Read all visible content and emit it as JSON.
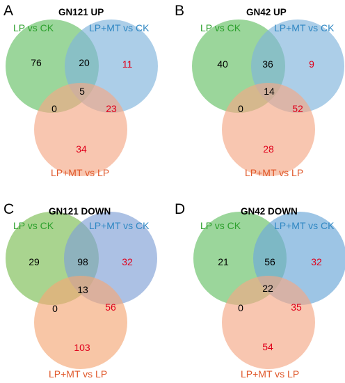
{
  "colors": {
    "set_a": "#2ca02c",
    "set_b": "#2f87c3",
    "set_c": "#e0582a",
    "count_black": "#000000",
    "count_red": "#e0001b"
  },
  "panels": [
    {
      "letter": "A",
      "title": "GN121 UP",
      "set_a_label": "LP vs CK",
      "set_b_label": "LP+MT vs CK",
      "set_c_label": "LP+MT vs LP",
      "counts": {
        "a_only": "76",
        "b_only": "11",
        "c_only": "34",
        "ab": "20",
        "ac": "0",
        "bc": "23",
        "abc": "5"
      }
    },
    {
      "letter": "B",
      "title": "GN42 UP",
      "set_a_label": "LP vs CK",
      "set_b_label": "LP+MT vs CK",
      "set_c_label": "LP+MT vs LP",
      "counts": {
        "a_only": "40",
        "b_only": "9",
        "c_only": "28",
        "ab": "36",
        "ac": "0",
        "bc": "52",
        "abc": "14"
      }
    },
    {
      "letter": "C",
      "title": "GN121 DOWN",
      "set_a_label": "LP vs CK",
      "set_b_label": "LP+MT vs CK",
      "set_c_label": "LP+MT vs LP",
      "counts": {
        "a_only": "29",
        "b_only": "32",
        "c_only": "103",
        "ab": "98",
        "ac": "0",
        "bc": "56",
        "abc": "13"
      }
    },
    {
      "letter": "D",
      "title": "GN42 DOWN",
      "set_a_label": "LP vs CK",
      "set_b_label": "LP+MT vs CK",
      "set_c_label": "LP+MT vs LP",
      "counts": {
        "a_only": "21",
        "b_only": "32",
        "c_only": "54",
        "ab": "56",
        "ac": "0",
        "bc": "35",
        "abc": "22"
      }
    }
  ]
}
